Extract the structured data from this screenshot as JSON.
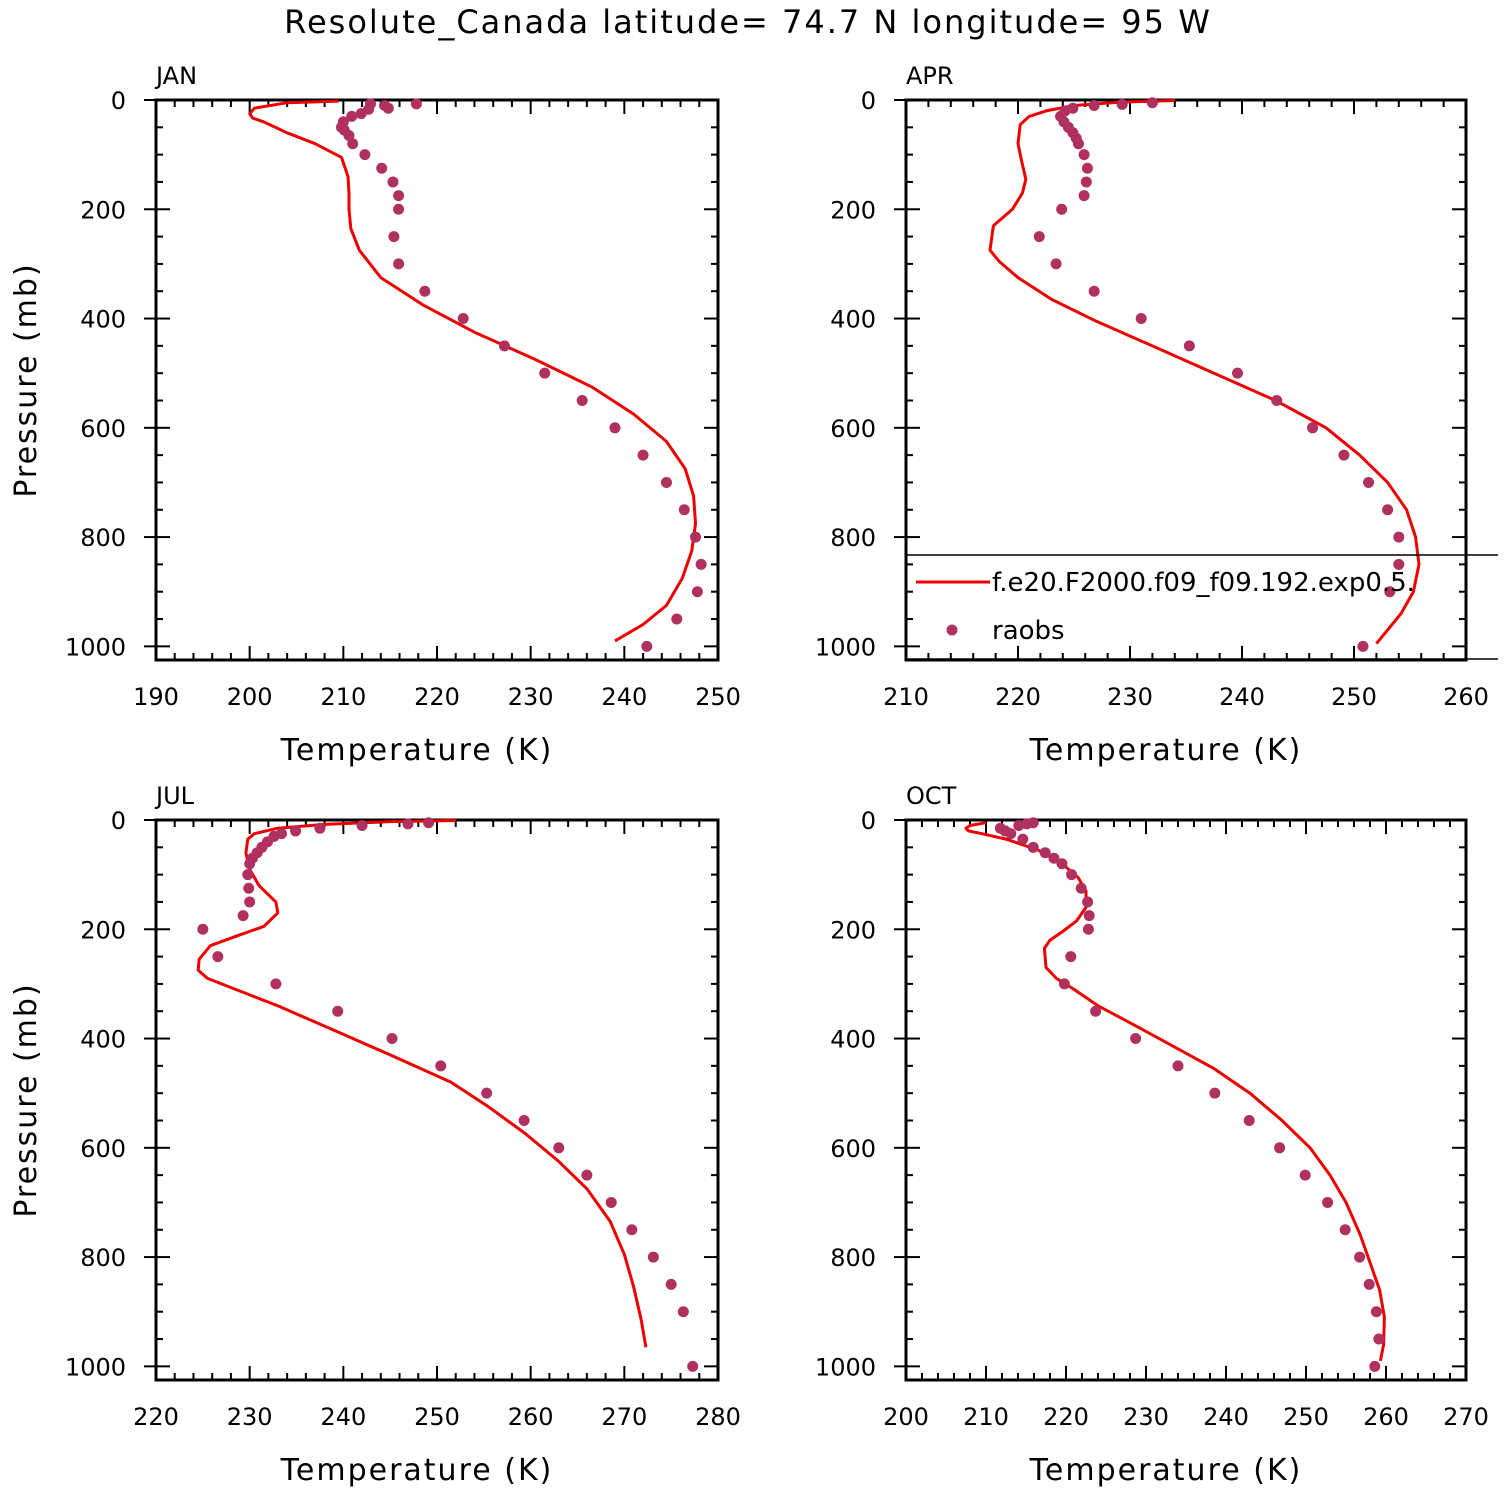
{
  "figure_title": "Resolute_Canada  latitude= 74.7 N longitude= 95 W",
  "colors": {
    "model": "#ee0000",
    "obs": "#b03060",
    "axes": "#000000"
  },
  "legend": {
    "panel": 1,
    "entries": [
      {
        "label": "f.e20.F2000.f09_f09.192.exp0.5.",
        "marker": "line",
        "color": "#ee0000"
      },
      {
        "label": "raobs",
        "marker": "dot",
        "color": "#b03060"
      }
    ]
  },
  "chart_data": [
    {
      "type": "line",
      "panel_label": "JAN",
      "xlabel": "Temperature (K)",
      "ylabel": "Pressure (mb)",
      "xlim": [
        190,
        250
      ],
      "ylim": [
        1000,
        0
      ],
      "xticks": [
        190,
        200,
        210,
        220,
        230,
        240,
        250
      ],
      "yticks": [
        0,
        200,
        400,
        600,
        800,
        1000
      ],
      "model": {
        "name": "f.e20.F2000.f09_f09.192.exp0.5.",
        "temperature": [
          209.5,
          204,
          200.5,
          200.0,
          200.3,
          201.5,
          204,
          207,
          209.8,
          210.5,
          210.6,
          210.6,
          210.8,
          211.7,
          214,
          218.5,
          224,
          230.5,
          236.5,
          241,
          244.5,
          246.5,
          247.4,
          247.6,
          247.2,
          246.2,
          244.5,
          242,
          239
        ],
        "pressure": [
          2,
          5,
          15,
          25,
          33,
          40,
          60,
          80,
          105,
          140,
          170,
          200,
          235,
          275,
          325,
          375,
          425,
          475,
          525,
          575,
          625,
          675,
          725,
          775,
          825,
          875,
          925,
          960,
          990
        ]
      },
      "obs": {
        "name": "raobs",
        "temperature": [
          217.8,
          214.8,
          214.4,
          212.9,
          212.7,
          211.9,
          210.9,
          210.0,
          209.8,
          210.1,
          210.6,
          211.0,
          212.3,
          214.1,
          215.3,
          215.9,
          215.9,
          215.4,
          215.9,
          218.7,
          222.8,
          227.2,
          231.5,
          235.5,
          239.0,
          242.0,
          244.5,
          246.4,
          247.6,
          248.2,
          247.8,
          245.6,
          242.4
        ],
        "pressure": [
          7,
          15,
          10,
          7,
          17,
          25,
          30,
          40,
          50,
          55,
          65,
          80,
          100,
          125,
          150,
          175,
          200,
          250,
          300,
          350,
          400,
          450,
          500,
          550,
          600,
          650,
          700,
          750,
          800,
          850,
          900,
          950,
          1000
        ]
      }
    },
    {
      "type": "line",
      "panel_label": "APR",
      "xlabel": "Temperature (K)",
      "ylabel": "",
      "xlim": [
        210,
        260
      ],
      "ylim": [
        1000,
        0
      ],
      "xticks": [
        210,
        220,
        230,
        240,
        250,
        260
      ],
      "yticks": [
        0,
        200,
        400,
        600,
        800,
        1000
      ],
      "model": {
        "name": "f.e20.F2000.f09_f09.192.exp0.5.",
        "temperature": [
          234,
          229,
          225,
          222.5,
          221,
          220.2,
          220,
          220.3,
          220.7,
          220.4,
          219.5,
          217.8,
          217.5,
          218.3,
          220,
          223,
          227,
          232,
          237.5,
          243,
          247.5,
          250.5,
          253,
          254.7,
          255.5,
          255.8,
          255.3,
          254.2,
          253,
          252
        ],
        "pressure": [
          1,
          4,
          10,
          20,
          30,
          45,
          80,
          110,
          145,
          170,
          200,
          230,
          275,
          295,
          325,
          365,
          405,
          450,
          500,
          550,
          600,
          650,
          700,
          750,
          800,
          850,
          900,
          940,
          970,
          995
        ]
      },
      "obs": {
        "name": "raobs",
        "temperature": [
          232.0,
          229.3,
          226.8,
          224.9,
          224.2,
          223.8,
          224.1,
          224.5,
          224.9,
          225.2,
          225.4,
          225.9,
          226.2,
          226.1,
          225.9,
          223.9,
          221.9,
          223.4,
          226.8,
          231.0,
          235.3,
          239.6,
          243.1,
          246.3,
          249.1,
          251.3,
          253.0,
          254.0,
          254.0,
          253.2,
          250.8
        ],
        "pressure": [
          5,
          8,
          10,
          15,
          20,
          30,
          40,
          50,
          60,
          70,
          80,
          100,
          125,
          150,
          175,
          200,
          250,
          300,
          350,
          400,
          450,
          500,
          550,
          600,
          650,
          700,
          750,
          800,
          850,
          900,
          1000
        ]
      }
    },
    {
      "type": "line",
      "panel_label": "JUL",
      "xlabel": "Temperature (K)",
      "ylabel": "Pressure (mb)",
      "xlim": [
        220,
        280
      ],
      "ylim": [
        1000,
        0
      ],
      "xticks": [
        220,
        230,
        240,
        250,
        260,
        270,
        280
      ],
      "yticks": [
        0,
        200,
        400,
        600,
        800,
        1000
      ],
      "model": {
        "name": "f.e20.F2000.f09_f09.192.exp0.5.",
        "temperature": [
          252,
          245,
          238,
          233,
          230.5,
          229.8,
          229.6,
          230,
          231,
          232.8,
          233,
          231.5,
          229,
          225.8,
          224.6,
          224.5,
          225.5,
          228.5,
          233,
          239,
          245,
          251.5,
          255.5,
          259.5,
          263,
          266,
          268.5,
          270,
          271,
          271.8,
          272.3
        ],
        "pressure": [
          1,
          3,
          8,
          15,
          25,
          35,
          60,
          90,
          120,
          150,
          170,
          195,
          210,
          230,
          255,
          275,
          290,
          310,
          340,
          385,
          430,
          480,
          525,
          575,
          625,
          675,
          735,
          795,
          855,
          915,
          965
        ]
      },
      "obs": {
        "name": "raobs",
        "temperature": [
          249.1,
          246.9,
          242.0,
          237.5,
          234.9,
          233.4,
          232.6,
          231.9,
          231.3,
          230.8,
          230.3,
          230.0,
          229.8,
          229.9,
          230.0,
          229.3,
          225.0,
          226.6,
          232.8,
          239.4,
          245.2,
          250.4,
          255.3,
          259.3,
          263.0,
          266.0,
          268.6,
          270.8,
          273.1,
          275.0,
          276.3,
          277.3
        ],
        "pressure": [
          5,
          7,
          10,
          15,
          20,
          25,
          30,
          40,
          50,
          60,
          70,
          80,
          100,
          125,
          150,
          175,
          200,
          250,
          300,
          350,
          400,
          450,
          500,
          550,
          600,
          650,
          700,
          750,
          800,
          850,
          900,
          1000
        ]
      }
    },
    {
      "type": "line",
      "panel_label": "OCT",
      "xlabel": "Temperature (K)",
      "ylabel": "",
      "xlim": [
        200,
        270
      ],
      "ylim": [
        1000,
        0
      ],
      "xticks": [
        200,
        210,
        220,
        230,
        240,
        250,
        260,
        270
      ],
      "yticks": [
        0,
        200,
        400,
        600,
        800,
        1000
      ],
      "model": {
        "name": "f.e20.F2000.f09_f09.192.exp0.5.",
        "temperature": [
          210,
          208,
          207.5,
          207.8,
          209.5,
          212.5,
          216.5,
          219.5,
          221.5,
          222.5,
          222.5,
          221.3,
          219.5,
          218,
          217.3,
          217.5,
          218.8,
          221,
          224,
          228.5,
          233.5,
          238.5,
          243,
          247,
          250.5,
          253,
          255,
          256.8,
          258,
          259.2,
          259.8,
          259.7,
          259.3
        ],
        "pressure": [
          5,
          10,
          15,
          20,
          25,
          35,
          55,
          80,
          105,
          130,
          160,
          185,
          205,
          220,
          235,
          270,
          290,
          310,
          340,
          375,
          415,
          455,
          500,
          550,
          600,
          650,
          700,
          760,
          810,
          860,
          910,
          960,
          990
        ]
      },
      "obs": {
        "name": "raobs",
        "temperature": [
          215.9,
          215.1,
          214.1,
          211.8,
          212.4,
          213.1,
          214.6,
          215.9,
          217.4,
          218.5,
          219.5,
          220.7,
          221.9,
          222.7,
          222.9,
          222.8,
          220.6,
          219.8,
          223.7,
          228.7,
          234.0,
          238.6,
          242.9,
          246.7,
          249.9,
          252.7,
          254.9,
          256.7,
          257.9,
          258.8,
          259.1,
          258.6
        ],
        "pressure": [
          5,
          7,
          10,
          15,
          20,
          25,
          35,
          50,
          60,
          70,
          80,
          100,
          125,
          150,
          175,
          200,
          250,
          300,
          350,
          400,
          450,
          500,
          550,
          600,
          650,
          700,
          750,
          800,
          850,
          900,
          950,
          1000
        ]
      }
    }
  ]
}
